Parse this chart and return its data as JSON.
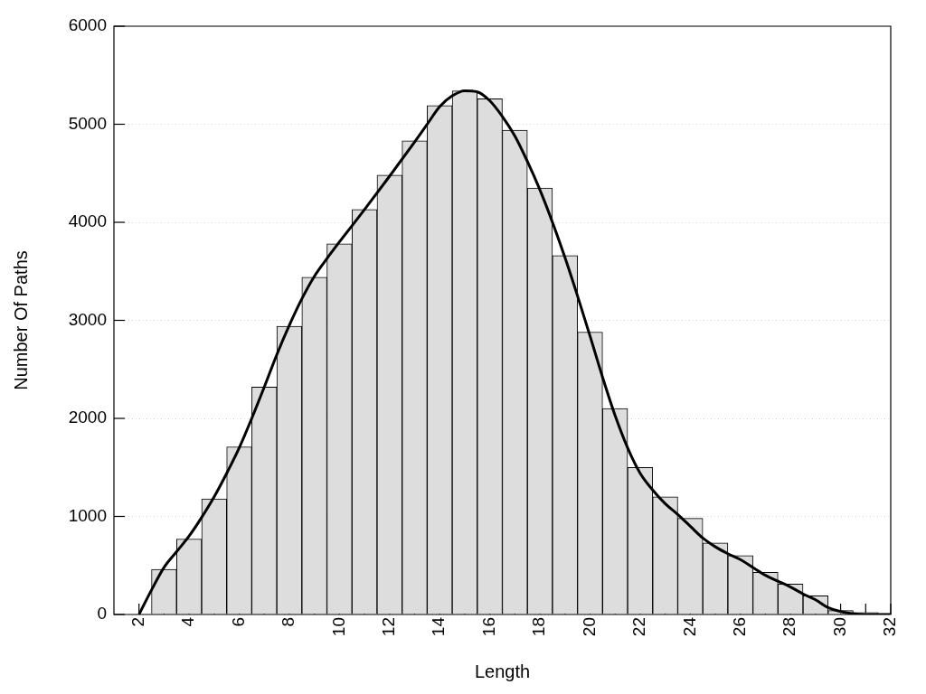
{
  "chart_data": {
    "type": "histogram",
    "xlabel": "Length",
    "ylabel": "Number Of Paths",
    "xlim": [
      1,
      32
    ],
    "xticks": [
      {
        "value": 2,
        "label": "2"
      },
      {
        "value": 3,
        "label": null
      },
      {
        "value": 4,
        "label": "4"
      },
      {
        "value": 5,
        "label": null
      },
      {
        "value": 6,
        "label": "6"
      },
      {
        "value": 7,
        "label": null
      },
      {
        "value": 8,
        "label": "8"
      },
      {
        "value": 9,
        "label": null
      },
      {
        "value": 10,
        "label": "10"
      },
      {
        "value": 11,
        "label": null
      },
      {
        "value": 12,
        "label": "12"
      },
      {
        "value": 13,
        "label": null
      },
      {
        "value": 14,
        "label": "14"
      },
      {
        "value": 15,
        "label": null
      },
      {
        "value": 16,
        "label": "16"
      },
      {
        "value": 17,
        "label": null
      },
      {
        "value": 18,
        "label": "18"
      },
      {
        "value": 19,
        "label": null
      },
      {
        "value": 20,
        "label": "20"
      },
      {
        "value": 21,
        "label": null
      },
      {
        "value": 22,
        "label": "22"
      },
      {
        "value": 23,
        "label": null
      },
      {
        "value": 24,
        "label": "24"
      },
      {
        "value": 25,
        "label": null
      },
      {
        "value": 26,
        "label": "26"
      },
      {
        "value": 27,
        "label": null
      },
      {
        "value": 28,
        "label": "28"
      },
      {
        "value": 29,
        "label": null
      },
      {
        "value": 30,
        "label": "30"
      },
      {
        "value": 31,
        "label": null
      },
      {
        "value": 32,
        "label": "32"
      }
    ],
    "ylim": [
      0,
      6000
    ],
    "yticks": [
      0,
      1000,
      2000,
      3000,
      4000,
      5000,
      6000
    ],
    "grid": "y",
    "legend": false,
    "series": [
      {
        "color": "#dddddd",
        "bins": [
          2.5,
          3.5,
          4.5,
          5.5,
          6.5,
          7.5,
          8.5,
          9.5,
          10.5,
          11.5,
          12.5,
          13.5,
          14.5,
          15.5,
          16.5,
          17.5,
          18.5,
          19.5,
          20.5,
          21.5,
          22.5,
          23.5,
          24.5,
          25.5,
          26.5,
          27.5,
          28.5,
          29.5,
          30.5,
          31.5
        ],
        "values": [
          460,
          770,
          1180,
          1710,
          2320,
          2940,
          3440,
          3780,
          4130,
          4480,
          4830,
          5190,
          5340,
          5260,
          4940,
          4350,
          3660,
          2880,
          2100,
          1500,
          1200,
          980,
          730,
          600,
          430,
          310,
          190,
          40,
          20
        ]
      },
      {
        "type": "line",
        "color": "#000000",
        "marker": "none",
        "line_style": "solid",
        "x": [
          2,
          2.5,
          3,
          3.5,
          4,
          4.5,
          5,
          5.5,
          6,
          6.5,
          7,
          7.5,
          8,
          8.5,
          9,
          9.5,
          10,
          11,
          12,
          13,
          13.5,
          14,
          14.5,
          15,
          15.5,
          16,
          16.5,
          17,
          17.5,
          18,
          18.5,
          19,
          19.5,
          20,
          20.5,
          21,
          21.5,
          22,
          22.5,
          23,
          23.5,
          24,
          24.5,
          25,
          25.5,
          26,
          26.5,
          27,
          27.5,
          28,
          28.5,
          29,
          29.5,
          30,
          31,
          32
        ],
        "values": [
          0,
          250,
          480,
          640,
          800,
          990,
          1200,
          1440,
          1700,
          2000,
          2320,
          2650,
          2950,
          3220,
          3450,
          3630,
          3800,
          4130,
          4470,
          4820,
          5000,
          5180,
          5290,
          5340,
          5330,
          5240,
          5080,
          4880,
          4620,
          4330,
          4000,
          3640,
          3250,
          2840,
          2420,
          2030,
          1700,
          1440,
          1270,
          1130,
          1020,
          900,
          780,
          690,
          620,
          560,
          480,
          400,
          340,
          280,
          210,
          150,
          70,
          30,
          0,
          0
        ]
      }
    ]
  }
}
